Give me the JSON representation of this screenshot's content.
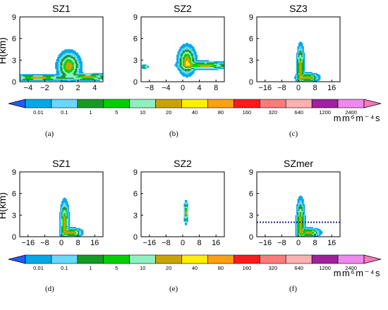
{
  "chart_data": {
    "type": "heatmap",
    "colors": {
      "text": "#000000",
      "dashed_line": "#1a237e",
      "bins": [
        "#1e5cff",
        "#00a8e8",
        "#66d9ff",
        "#159a24",
        "#00cf00",
        "#8ef0c0",
        "#c9a300",
        "#ffee00",
        "#ffa010",
        "#ff1a1a",
        "#ff7a7a",
        "#ffb0b0",
        "#a020a0",
        "#ee88ee",
        "#ff78b8"
      ]
    },
    "colorbar": {
      "labels": [
        "0.01",
        "0.1",
        "1",
        "5",
        "10",
        "20",
        "40",
        "80",
        "160",
        "320",
        "640",
        "1200",
        "2400"
      ],
      "unit": "mm⁶m⁻⁴s"
    },
    "colorbar_bottom": {
      "labels": [
        "0.01",
        "0.1",
        "1",
        "5",
        "10",
        "20",
        "40",
        "80",
        "160",
        "320",
        "640",
        "1200",
        "2400"
      ],
      "unit": "mm⁶m⁻⁴s"
    },
    "panels": [
      {
        "title": "SZ1",
        "label": "(a)",
        "ylabel": "H(km)",
        "xlim": [
          -5,
          5
        ],
        "xticks": [
          "−4",
          "−2",
          "0",
          "2",
          "4"
        ],
        "ylim": [
          0,
          9
        ],
        "yticks": [
          "0",
          "3",
          "6",
          "9"
        ],
        "blobs": [
          {
            "x": 0.9,
            "y": 2.2,
            "sx": 0.9,
            "sy": 1.3
          },
          {
            "x": -2.8,
            "y": 0.6,
            "sx": 2.4,
            "sy": 0.25
          },
          {
            "x": 3.2,
            "y": 0.7,
            "sx": 1.7,
            "sy": 0.3
          }
        ],
        "dashed_y": null
      },
      {
        "title": "SZ2",
        "label": "(b)",
        "ylabel": "",
        "xlim": [
          -10,
          10
        ],
        "xticks": [
          "−8",
          "−4",
          "0",
          "4",
          "8"
        ],
        "ylim": [
          0,
          9
        ],
        "yticks": [
          "0",
          "3",
          "6",
          "9"
        ],
        "blobs": [
          {
            "x": 1.0,
            "y": 3.0,
            "sx": 1.4,
            "sy": 1.3
          },
          {
            "x": 5.5,
            "y": 2.3,
            "sx": 4.0,
            "sy": 0.35
          },
          {
            "x": -9.2,
            "y": 2.1,
            "sx": 0.5,
            "sy": 0.15
          }
        ],
        "dashed_y": null
      },
      {
        "title": "SZ3",
        "label": "(c)",
        "ylabel": "",
        "xlim": [
          -20,
          20
        ],
        "xticks": [
          "−16",
          "−8",
          "0",
          "8",
          "16"
        ],
        "ylim": [
          0,
          9
        ],
        "yticks": [
          "0",
          "3",
          "6",
          "9"
        ],
        "blobs": [
          {
            "x": 1.0,
            "y": 2.0,
            "sx": 1.2,
            "sy": 2.0
          },
          {
            "x": 4.5,
            "y": 0.6,
            "sx": 3.5,
            "sy": 0.4
          }
        ],
        "dashed_y": null
      },
      {
        "title": "SZ1",
        "label": "(d)",
        "ylabel": "H(km)",
        "xlim": [
          -20,
          20
        ],
        "xticks": [
          "−16",
          "−8",
          "0",
          "8",
          "16"
        ],
        "ylim": [
          0,
          9
        ],
        "yticks": [
          "0",
          "3",
          "6",
          "9"
        ],
        "blobs": [
          {
            "x": 1.5,
            "y": 2.0,
            "sx": 1.4,
            "sy": 1.9
          },
          {
            "x": 5.0,
            "y": 0.6,
            "sx": 3.2,
            "sy": 0.4
          }
        ],
        "dashed_y": null
      },
      {
        "title": "SZ2",
        "label": "(e)",
        "ylabel": "",
        "xlim": [
          -20,
          20
        ],
        "xticks": [
          "−16",
          "−8",
          "0",
          "8",
          "16"
        ],
        "ylim": [
          0,
          9
        ],
        "yticks": [
          "0",
          "3",
          "6",
          "9"
        ],
        "blobs": [
          {
            "x": 1.5,
            "y": 3.4,
            "sx": 0.6,
            "sy": 1.0
          }
        ],
        "dashed_y": null
      },
      {
        "title": "SZmer",
        "label": "(f)",
        "ylabel": "",
        "xlim": [
          -20,
          20
        ],
        "xticks": [
          "−16",
          "−8",
          "0",
          "8",
          "16"
        ],
        "ylim": [
          0,
          9
        ],
        "yticks": [
          "0",
          "3",
          "6",
          "9"
        ],
        "blobs": [
          {
            "x": 1.0,
            "y": 2.0,
            "sx": 1.3,
            "sy": 2.1
          },
          {
            "x": 5.0,
            "y": 0.6,
            "sx": 3.6,
            "sy": 0.4
          }
        ],
        "dashed_y": 2.0
      }
    ]
  }
}
